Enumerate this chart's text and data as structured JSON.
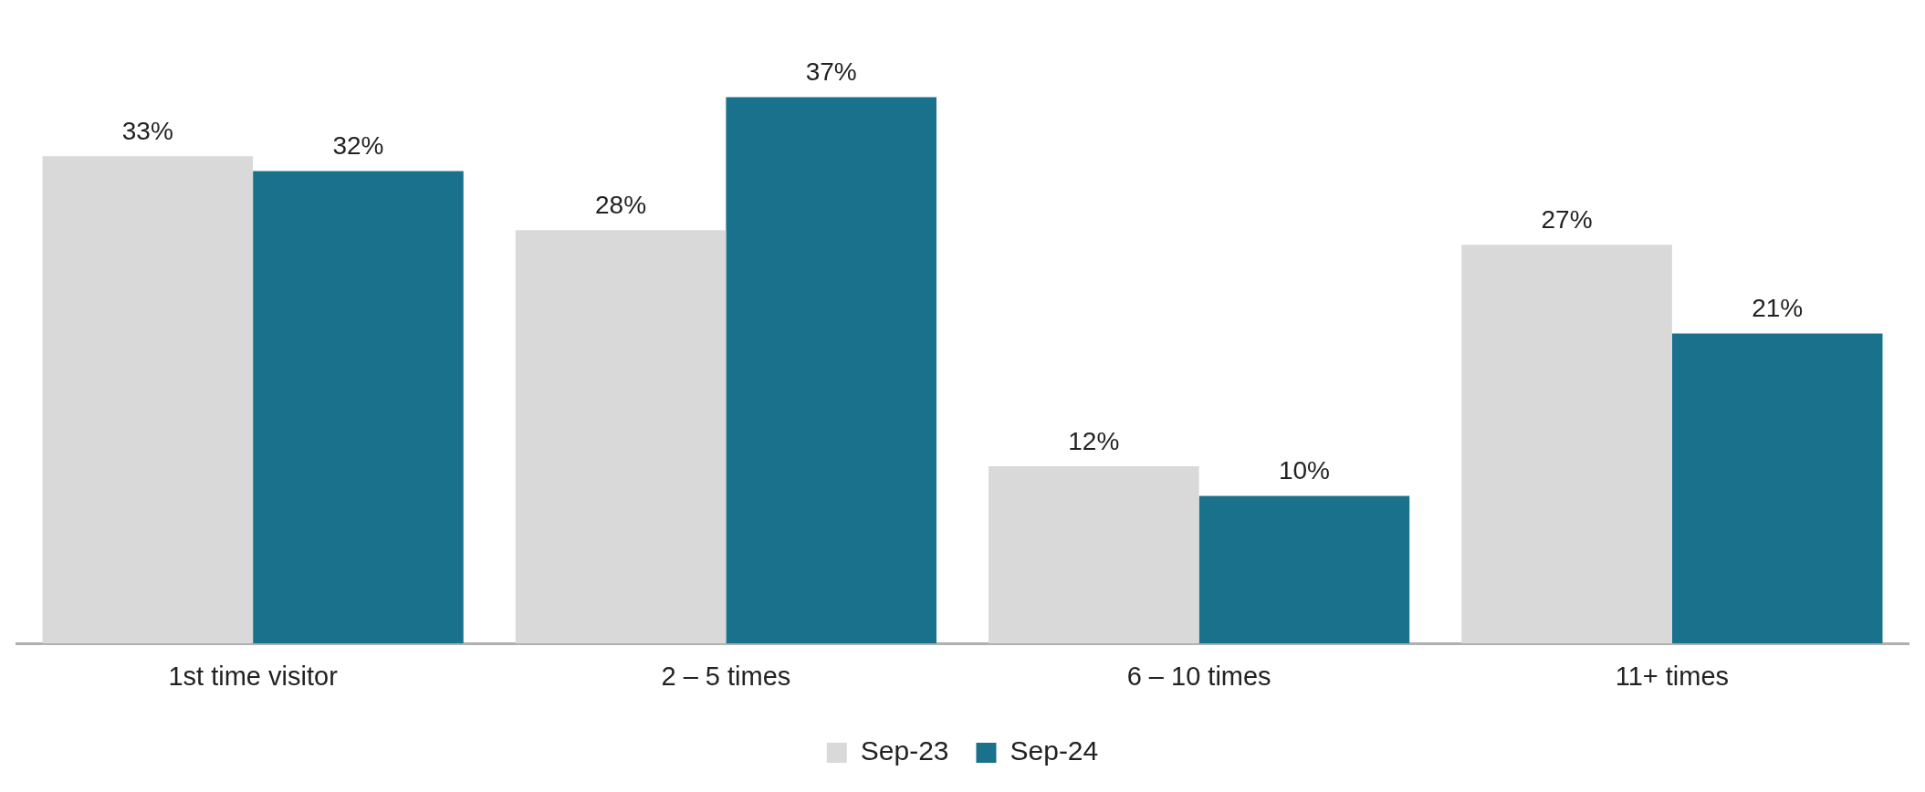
{
  "chart_data": {
    "type": "bar",
    "categories": [
      "1st time visitor",
      "2 – 5 times",
      "6 – 10 times",
      "11+ times"
    ],
    "series": [
      {
        "name": "Sep-23",
        "color": "#d9d9d9",
        "values": [
          33,
          28,
          12,
          27
        ],
        "value_labels": [
          "33%",
          "28%",
          "12%",
          "27%"
        ]
      },
      {
        "name": "Sep-24",
        "color": "#1a718c",
        "values": [
          32,
          37,
          10,
          21
        ],
        "value_labels": [
          "32%",
          "37%",
          "10%",
          "21%"
        ]
      }
    ],
    "legend": "bottom",
    "grid": false
  }
}
